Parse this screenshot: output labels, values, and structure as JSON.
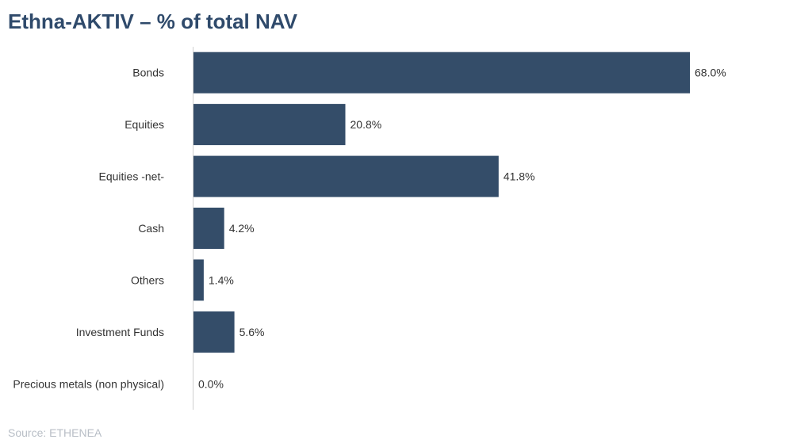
{
  "title": "Ethna-AKTIV – % of total NAV",
  "source": "Source: ETHENEA",
  "colors": {
    "bar": "#344d69",
    "axis": "#d0d0d0",
    "title": "#2f4a6b"
  },
  "chart_data": {
    "type": "bar",
    "orientation": "horizontal",
    "categories": [
      "Bonds",
      "Equities",
      "Equities -net-",
      "Cash",
      "Others",
      "Investment Funds",
      "Precious metals (non physical)"
    ],
    "values": [
      68.0,
      20.8,
      41.8,
      4.2,
      1.4,
      5.6,
      0.0
    ],
    "value_labels": [
      "68.0%",
      "20.8%",
      "41.8%",
      "4.2%",
      "1.4%",
      "5.6%",
      "0.0%"
    ],
    "unit": "%",
    "title": "Ethna-AKTIV – % of total NAV",
    "xlabel": "",
    "ylabel": "",
    "grid": false,
    "legend": "none"
  }
}
